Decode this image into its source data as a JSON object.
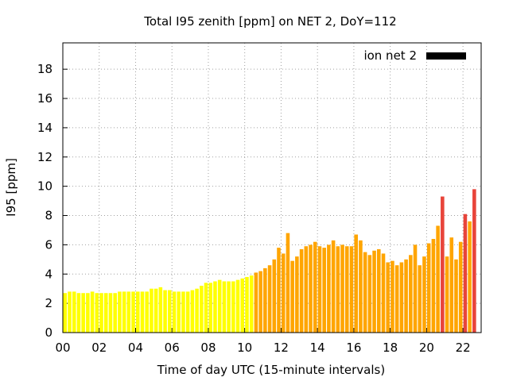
{
  "chart_data": {
    "type": "bar",
    "title": "Total I95 zenith [ppm] on NET 2, DoY=112",
    "xlabel": "Time of day UTC (15-minute intervals)",
    "ylabel": "I95 [ppm]",
    "xlim": [
      0,
      23
    ],
    "ylim": [
      0,
      19.8
    ],
    "xticks": [
      "00",
      "02",
      "04",
      "06",
      "08",
      "10",
      "12",
      "14",
      "16",
      "18",
      "20",
      "22"
    ],
    "yticks": [
      "0",
      "2",
      "4",
      "6",
      "8",
      "10",
      "12",
      "14",
      "16",
      "18"
    ],
    "grid": true,
    "legend": {
      "label": "ion net 2",
      "color": "#000000",
      "placement": "top-right"
    },
    "colors": {
      "low": "#ffff00",
      "mid": "#ffa500",
      "high": "#e8443a"
    },
    "bar_interval_hours": 0.25,
    "values": [
      2.7,
      2.8,
      2.8,
      2.7,
      2.7,
      2.7,
      2.8,
      2.7,
      2.7,
      2.7,
      2.7,
      2.7,
      2.8,
      2.8,
      2.8,
      2.8,
      2.8,
      2.8,
      2.8,
      3.0,
      3.0,
      3.1,
      2.9,
      2.9,
      2.8,
      2.8,
      2.8,
      2.8,
      2.9,
      3.0,
      3.2,
      3.4,
      3.4,
      3.5,
      3.6,
      3.5,
      3.5,
      3.5,
      3.6,
      3.7,
      3.8,
      3.9,
      4.1,
      4.2,
      4.4,
      4.6,
      5.0,
      5.8,
      5.4,
      6.8,
      4.9,
      5.2,
      5.7,
      5.9,
      6.0,
      6.2,
      5.9,
      5.8,
      6.0,
      6.3,
      5.9,
      6.0,
      5.9,
      5.9,
      6.7,
      6.3,
      5.5,
      5.3,
      5.6,
      5.7,
      5.4,
      4.8,
      4.9,
      4.6,
      4.8,
      5.0,
      5.3,
      6.0,
      4.6,
      5.2,
      6.1,
      6.4,
      7.3,
      9.3,
      5.2,
      6.5,
      5.0,
      6.2,
      8.1,
      7.6,
      9.8
    ]
  }
}
